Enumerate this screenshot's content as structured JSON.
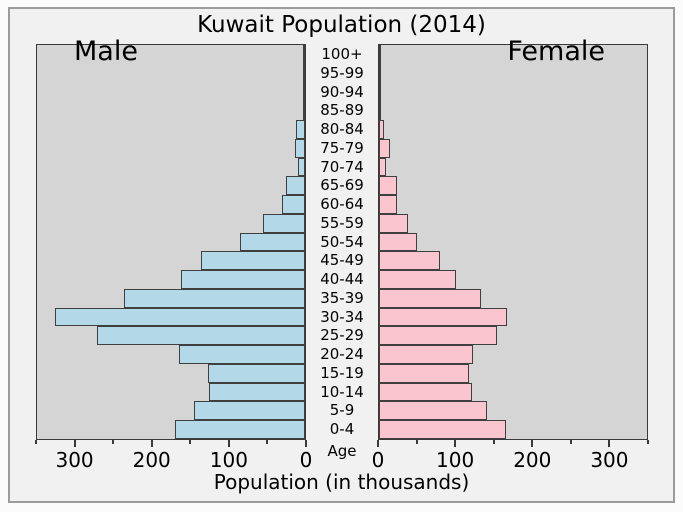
{
  "title": "Kuwait Population (2014)",
  "panels": {
    "male": {
      "label": "Male"
    },
    "female": {
      "label": "Female"
    }
  },
  "age_axis": {
    "label": "Age"
  },
  "x_axis": {
    "label": "Population (in thousands)",
    "major_ticks": [
      0,
      100,
      200,
      300
    ],
    "minor_ticks": [
      50,
      150,
      250,
      350
    ],
    "max": 350
  },
  "colors": {
    "male_bar": "#b3d9e8",
    "female_bar": "#fac5cf",
    "bar_edge": "#3f3f3f",
    "panel_bg": "#d5d5d5",
    "figure_bg": "#f1f1f1",
    "figure_border": "#9b9b9b"
  },
  "chart_data": {
    "type": "bar",
    "subtype": "population_pyramid",
    "title": "Kuwait Population (2014)",
    "xlabel": "Population (in thousands)",
    "units": "thousands",
    "categories_top_to_bottom": [
      "100+",
      "95-99",
      "90-94",
      "85-89",
      "80-84",
      "75-79",
      "70-74",
      "65-69",
      "60-64",
      "55-59",
      "50-54",
      "45-49",
      "40-44",
      "35-39",
      "30-34",
      "25-29",
      "20-24",
      "15-19",
      "10-14",
      "5-9",
      "0-4"
    ],
    "series": [
      {
        "name": "Male",
        "side": "left",
        "color": "#b3d9e8",
        "values": [
          0.5,
          1,
          2,
          3,
          12,
          13,
          9,
          25,
          30,
          55,
          85,
          136,
          162,
          237,
          327,
          272,
          164,
          127,
          125,
          145,
          170
        ]
      },
      {
        "name": "Female",
        "side": "right",
        "color": "#fac5cf",
        "values": [
          0.3,
          0.5,
          1,
          2,
          6,
          14,
          9,
          24,
          23,
          38,
          49,
          80,
          100,
          133,
          167,
          154,
          123,
          117,
          122,
          141,
          166
        ]
      }
    ],
    "xlim": [
      0,
      350
    ],
    "x_major_ticks": [
      0,
      100,
      200,
      300
    ],
    "x_minor_ticks": [
      50,
      150,
      250,
      350
    ],
    "grid": false,
    "legend": false
  }
}
